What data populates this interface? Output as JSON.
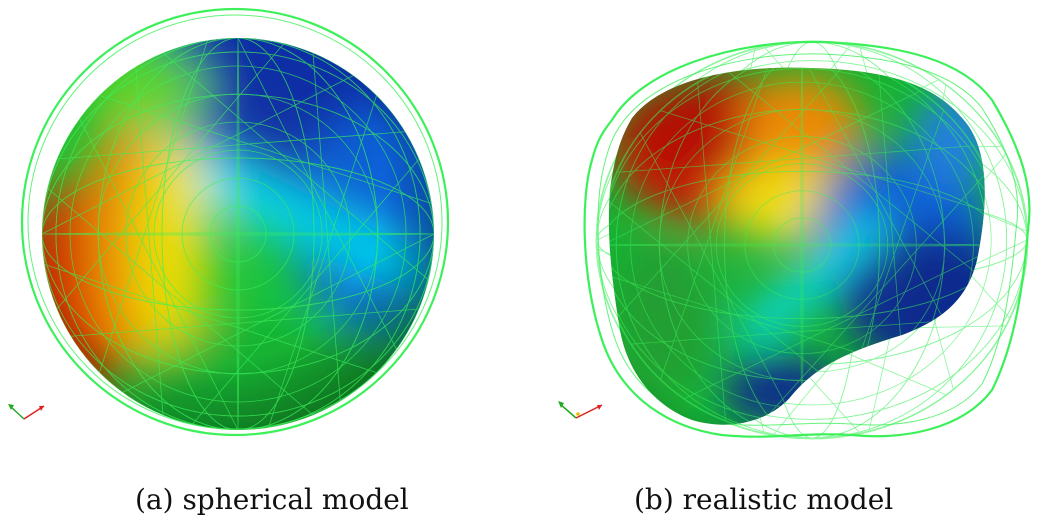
{
  "figure": {
    "panels": [
      {
        "id": "a",
        "caption": "(a) spherical model",
        "surface_colormap": [
          "#0b2a8f",
          "#1f5fe0",
          "#00e5f2",
          "#18d43a",
          "#f2e600",
          "#f49a00",
          "#d21800"
        ],
        "wireframe_color": "#3cf05a"
      },
      {
        "id": "b",
        "caption": "(b) realistic model",
        "surface_colormap": [
          "#0b2a8f",
          "#1f5fe0",
          "#00e5f2",
          "#18d43a",
          "#f2e600",
          "#f49a00",
          "#d21800"
        ],
        "wireframe_color": "#3cf05a"
      }
    ],
    "axis_triad_colors": {
      "x": "#e02020",
      "y": "#22aa22",
      "z": "#e0c000"
    }
  }
}
